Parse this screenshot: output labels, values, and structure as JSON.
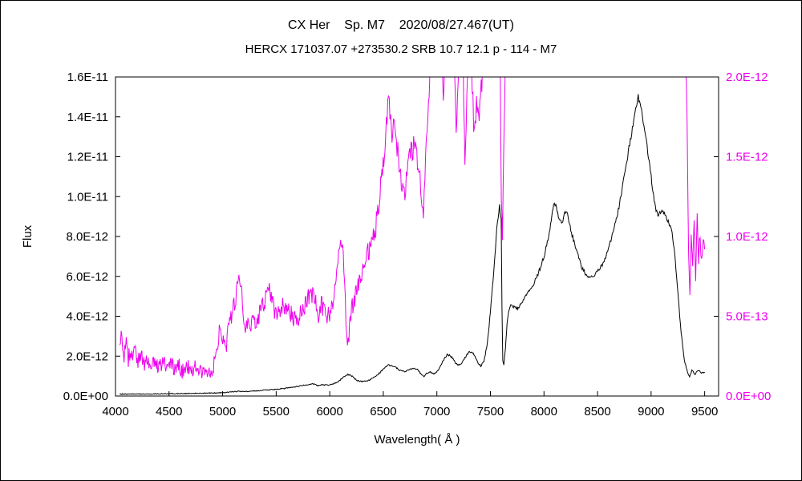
{
  "chart_data": {
    "type": "line",
    "title": "CX Her    Sp. M7    2020/08/27.467(UT)",
    "subtitle": "HERCX 171037.07 +273530.2 SRB 10.7 12.1 p - 114 - M7",
    "xlabel": "Wavelength( Å )",
    "ylabel": "Flux",
    "grid": false,
    "legend": "none",
    "xlim": [
      4000,
      9630
    ],
    "x_ticks": [
      4000,
      4500,
      5000,
      5500,
      6000,
      6500,
      7000,
      7500,
      8000,
      8500,
      9000,
      9500
    ],
    "left_axis": {
      "color": "#000000",
      "max_1e12": 16,
      "tick_labels": [
        "0.0E+00",
        "2.0E-12",
        "4.0E-12",
        "6.0E-12",
        "8.0E-12",
        "1.0E-11",
        "1.2E-11",
        "1.4E-11",
        "1.6E-11"
      ],
      "tick_values_1e12": [
        0,
        2,
        4,
        6,
        8,
        10,
        12,
        14,
        16
      ]
    },
    "right_axis": {
      "color": "#ee00ee",
      "max_1e12": 2.0,
      "tick_labels": [
        "0.0E+00",
        "5.0E-13",
        "1.0E-12",
        "1.5E-12",
        "2.0E-12"
      ],
      "tick_values_1e12": [
        0,
        0.5,
        1.0,
        1.5,
        2.0
      ]
    },
    "series": [
      {
        "name": "spectrum-magenta",
        "axis": "right",
        "color": "#ee00ee",
        "noise_base": 0.05,
        "noise_scale": 0.02,
        "points": [
          [
            4040,
            0.3
          ],
          [
            4060,
            0.4
          ],
          [
            4080,
            0.24
          ],
          [
            4100,
            0.34
          ],
          [
            4120,
            0.22
          ],
          [
            4140,
            0.3
          ],
          [
            4160,
            0.24
          ],
          [
            4180,
            0.29
          ],
          [
            4210,
            0.21
          ],
          [
            4240,
            0.27
          ],
          [
            4270,
            0.2
          ],
          [
            4300,
            0.24
          ],
          [
            4330,
            0.18
          ],
          [
            4360,
            0.23
          ],
          [
            4400,
            0.18
          ],
          [
            4440,
            0.22
          ],
          [
            4480,
            0.16
          ],
          [
            4520,
            0.21
          ],
          [
            4560,
            0.15
          ],
          [
            4600,
            0.19
          ],
          [
            4640,
            0.14
          ],
          [
            4680,
            0.18
          ],
          [
            4720,
            0.15
          ],
          [
            4760,
            0.2
          ],
          [
            4800,
            0.14
          ],
          [
            4840,
            0.17
          ],
          [
            4880,
            0.14
          ],
          [
            4920,
            0.2
          ],
          [
            4950,
            0.3
          ],
          [
            4975,
            0.45
          ],
          [
            5000,
            0.36
          ],
          [
            5030,
            0.3
          ],
          [
            5060,
            0.44
          ],
          [
            5100,
            0.54
          ],
          [
            5140,
            0.68
          ],
          [
            5165,
            0.75
          ],
          [
            5185,
            0.6
          ],
          [
            5205,
            0.4
          ],
          [
            5230,
            0.43
          ],
          [
            5270,
            0.46
          ],
          [
            5310,
            0.48
          ],
          [
            5350,
            0.52
          ],
          [
            5390,
            0.58
          ],
          [
            5430,
            0.66
          ],
          [
            5460,
            0.62
          ],
          [
            5490,
            0.5
          ],
          [
            5520,
            0.53
          ],
          [
            5560,
            0.56
          ],
          [
            5600,
            0.57
          ],
          [
            5640,
            0.51
          ],
          [
            5680,
            0.47
          ],
          [
            5720,
            0.5
          ],
          [
            5760,
            0.56
          ],
          [
            5800,
            0.61
          ],
          [
            5840,
            0.64
          ],
          [
            5875,
            0.56
          ],
          [
            5895,
            0.47
          ],
          [
            5915,
            0.58
          ],
          [
            5945,
            0.54
          ],
          [
            5975,
            0.49
          ],
          [
            6005,
            0.53
          ],
          [
            6035,
            0.62
          ],
          [
            6065,
            0.78
          ],
          [
            6095,
            0.92
          ],
          [
            6120,
            0.95
          ],
          [
            6145,
            0.6
          ],
          [
            6165,
            0.3
          ],
          [
            6185,
            0.42
          ],
          [
            6210,
            0.56
          ],
          [
            6240,
            0.63
          ],
          [
            6270,
            0.7
          ],
          [
            6310,
            0.8
          ],
          [
            6350,
            0.88
          ],
          [
            6390,
            0.96
          ],
          [
            6430,
            1.06
          ],
          [
            6470,
            1.28
          ],
          [
            6510,
            1.55
          ],
          [
            6535,
            1.78
          ],
          [
            6555,
            1.86
          ],
          [
            6575,
            1.62
          ],
          [
            6595,
            1.76
          ],
          [
            6615,
            1.66
          ],
          [
            6635,
            1.52
          ],
          [
            6655,
            1.42
          ],
          [
            6675,
            1.32
          ],
          [
            6695,
            1.26
          ],
          [
            6715,
            1.36
          ],
          [
            6735,
            1.46
          ],
          [
            6765,
            1.53
          ],
          [
            6795,
            1.56
          ],
          [
            6825,
            1.46
          ],
          [
            6855,
            1.27
          ],
          [
            6875,
            1.12
          ],
          [
            6895,
            1.48
          ],
          [
            6915,
            1.78
          ],
          [
            6935,
            2.02
          ],
          [
            6955,
            2.25
          ],
          [
            7000,
            2.3
          ],
          [
            7040,
            2.28
          ],
          [
            7060,
            1.85
          ],
          [
            7080,
            2.25
          ],
          [
            7120,
            2.3
          ],
          [
            7155,
            2.28
          ],
          [
            7180,
            1.62
          ],
          [
            7205,
            2.15
          ],
          [
            7240,
            2.3
          ],
          [
            7262,
            1.42
          ],
          [
            7285,
            2.05
          ],
          [
            7310,
            2.3
          ],
          [
            7330,
            1.92
          ],
          [
            7350,
            1.62
          ],
          [
            7370,
            1.88
          ],
          [
            7395,
            1.72
          ],
          [
            7420,
            1.98
          ],
          [
            7445,
            2.15
          ],
          [
            7470,
            2.3
          ],
          [
            7520,
            2.35
          ],
          [
            7560,
            2.3
          ],
          [
            7590,
            2.1
          ],
          [
            7602,
            1.25
          ],
          [
            7612,
            0.95
          ],
          [
            7625,
            1.55
          ],
          [
            7645,
            2.3
          ],
          [
            7700,
            2.4
          ],
          [
            7800,
            2.4
          ],
          [
            8200,
            2.4
          ],
          [
            8800,
            2.4
          ],
          [
            9200,
            2.4
          ],
          [
            9290,
            2.4
          ],
          [
            9315,
            2.35
          ],
          [
            9335,
            1.7
          ],
          [
            9350,
            0.95
          ],
          [
            9362,
            0.62
          ],
          [
            9374,
            1.05
          ],
          [
            9388,
            0.82
          ],
          [
            9402,
            1.15
          ],
          [
            9416,
            0.78
          ],
          [
            9430,
            1.1
          ],
          [
            9444,
            0.85
          ],
          [
            9458,
            1.05
          ],
          [
            9472,
            0.8
          ],
          [
            9486,
            1.0
          ],
          [
            9500,
            0.92
          ]
        ]
      },
      {
        "name": "spectrum-black",
        "axis": "left",
        "color": "#000000",
        "noise_base": 0.02,
        "noise_scale": 0.012,
        "points": [
          [
            4040,
            0.1
          ],
          [
            4100,
            0.09
          ],
          [
            4200,
            0.1
          ],
          [
            4300,
            0.1
          ],
          [
            4400,
            0.11
          ],
          [
            4500,
            0.12
          ],
          [
            4600,
            0.12
          ],
          [
            4700,
            0.13
          ],
          [
            4800,
            0.14
          ],
          [
            4900,
            0.15
          ],
          [
            5000,
            0.17
          ],
          [
            5080,
            0.2
          ],
          [
            5150,
            0.24
          ],
          [
            5200,
            0.22
          ],
          [
            5300,
            0.26
          ],
          [
            5400,
            0.3
          ],
          [
            5500,
            0.33
          ],
          [
            5600,
            0.4
          ],
          [
            5700,
            0.48
          ],
          [
            5780,
            0.56
          ],
          [
            5840,
            0.62
          ],
          [
            5890,
            0.52
          ],
          [
            5930,
            0.56
          ],
          [
            5980,
            0.55
          ],
          [
            6030,
            0.6
          ],
          [
            6080,
            0.72
          ],
          [
            6130,
            0.95
          ],
          [
            6170,
            1.08
          ],
          [
            6210,
            1.0
          ],
          [
            6250,
            0.78
          ],
          [
            6300,
            0.72
          ],
          [
            6350,
            0.76
          ],
          [
            6400,
            0.88
          ],
          [
            6450,
            1.08
          ],
          [
            6500,
            1.35
          ],
          [
            6540,
            1.55
          ],
          [
            6580,
            1.52
          ],
          [
            6620,
            1.42
          ],
          [
            6660,
            1.28
          ],
          [
            6700,
            1.22
          ],
          [
            6740,
            1.32
          ],
          [
            6780,
            1.4
          ],
          [
            6820,
            1.32
          ],
          [
            6860,
            1.05
          ],
          [
            6880,
            0.98
          ],
          [
            6900,
            1.12
          ],
          [
            6940,
            1.2
          ],
          [
            6980,
            1.1
          ],
          [
            7020,
            1.35
          ],
          [
            7060,
            1.8
          ],
          [
            7100,
            2.1
          ],
          [
            7140,
            1.95
          ],
          [
            7180,
            1.6
          ],
          [
            7220,
            1.55
          ],
          [
            7260,
            1.9
          ],
          [
            7300,
            2.2
          ],
          [
            7340,
            2.15
          ],
          [
            7380,
            1.7
          ],
          [
            7410,
            1.5
          ],
          [
            7440,
            1.75
          ],
          [
            7470,
            2.6
          ],
          [
            7500,
            4.2
          ],
          [
            7530,
            6.2
          ],
          [
            7560,
            8.4
          ],
          [
            7585,
            9.6
          ],
          [
            7600,
            8.8
          ],
          [
            7608,
            4.5
          ],
          [
            7615,
            1.8
          ],
          [
            7625,
            1.55
          ],
          [
            7640,
            2.4
          ],
          [
            7655,
            3.6
          ],
          [
            7670,
            4.3
          ],
          [
            7690,
            4.6
          ],
          [
            7720,
            4.45
          ],
          [
            7760,
            4.4
          ],
          [
            7800,
            4.75
          ],
          [
            7850,
            5.15
          ],
          [
            7900,
            5.6
          ],
          [
            7950,
            6.2
          ],
          [
            8000,
            7.0
          ],
          [
            8050,
            8.2
          ],
          [
            8090,
            9.55
          ],
          [
            8110,
            9.7
          ],
          [
            8140,
            8.9
          ],
          [
            8170,
            8.6
          ],
          [
            8200,
            9.25
          ],
          [
            8220,
            9.1
          ],
          [
            8250,
            8.3
          ],
          [
            8300,
            7.4
          ],
          [
            8350,
            6.45
          ],
          [
            8400,
            6.05
          ],
          [
            8450,
            5.95
          ],
          [
            8500,
            6.25
          ],
          [
            8550,
            6.65
          ],
          [
            8600,
            7.3
          ],
          [
            8650,
            8.3
          ],
          [
            8700,
            9.5
          ],
          [
            8750,
            11.0
          ],
          [
            8800,
            12.6
          ],
          [
            8850,
            14.3
          ],
          [
            8880,
            14.95
          ],
          [
            8910,
            14.3
          ],
          [
            8950,
            13.0
          ],
          [
            9000,
            11.0
          ],
          [
            9040,
            9.4
          ],
          [
            9070,
            9.05
          ],
          [
            9100,
            9.35
          ],
          [
            9130,
            9.05
          ],
          [
            9160,
            8.7
          ],
          [
            9190,
            8.4
          ],
          [
            9220,
            7.2
          ],
          [
            9250,
            5.2
          ],
          [
            9280,
            3.2
          ],
          [
            9310,
            1.8
          ],
          [
            9340,
            1.2
          ],
          [
            9360,
            0.95
          ],
          [
            9380,
            1.3
          ],
          [
            9410,
            1.1
          ],
          [
            9440,
            1.3
          ],
          [
            9470,
            1.15
          ],
          [
            9500,
            1.2
          ]
        ]
      }
    ]
  }
}
